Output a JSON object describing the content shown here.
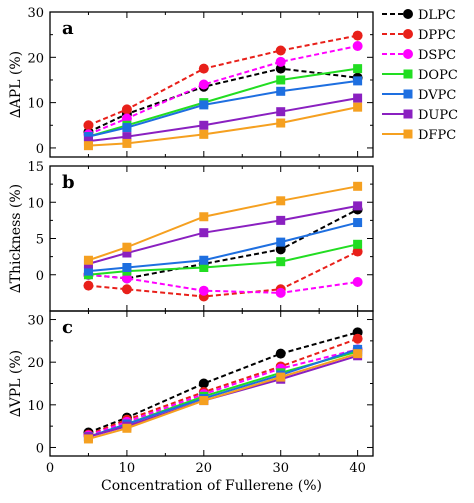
{
  "chart_data": [
    {
      "type": "line",
      "panel_label": "a",
      "ylabel": "∆APL (%)",
      "ylim": [
        -2,
        30
      ],
      "yticks": [
        0,
        10,
        20,
        30
      ],
      "x": [
        5,
        10,
        20,
        30,
        40
      ],
      "series": [
        {
          "name": "DLPC",
          "color": "#000000",
          "dashed": true,
          "values": [
            3.5,
            7.5,
            13.5,
            17.5,
            15.5
          ]
        },
        {
          "name": "DPPC",
          "color": "#e8201a",
          "dashed": true,
          "values": [
            5.0,
            8.5,
            17.5,
            21.5,
            24.8
          ]
        },
        {
          "name": "DSPC",
          "color": "#ff00ff",
          "dashed": true,
          "values": [
            3.0,
            6.5,
            14.0,
            19.0,
            22.5
          ]
        },
        {
          "name": "DOPC",
          "color": "#22dd22",
          "dashed": false,
          "values": [
            2.5,
            5.0,
            10.0,
            15.0,
            17.5
          ]
        },
        {
          "name": "DVPC",
          "color": "#1e6fe0",
          "dashed": false,
          "values": [
            2.5,
            4.5,
            9.5,
            12.5,
            14.8
          ]
        },
        {
          "name": "DUPC",
          "color": "#8a20c0",
          "dashed": false,
          "values": [
            1.5,
            2.5,
            5.0,
            8.0,
            11.0
          ]
        },
        {
          "name": "DFPC",
          "color": "#f5a020",
          "dashed": false,
          "values": [
            0.5,
            1.0,
            3.0,
            5.5,
            9.0
          ]
        }
      ]
    },
    {
      "type": "line",
      "panel_label": "b",
      "ylabel": "∆Thickness (%)",
      "ylim": [
        -5,
        15
      ],
      "yticks": [
        0,
        5,
        10,
        15
      ],
      "x": [
        5,
        10,
        20,
        30,
        40
      ],
      "series": [
        {
          "name": "DLPC",
          "color": "#000000",
          "dashed": true,
          "values": [
            0.0,
            -0.5,
            1.5,
            3.5,
            9.0
          ]
        },
        {
          "name": "DPPC",
          "color": "#e8201a",
          "dashed": true,
          "values": [
            -1.5,
            -2.0,
            -3.0,
            -2.0,
            3.2
          ]
        },
        {
          "name": "DSPC",
          "color": "#ff00ff",
          "dashed": true,
          "values": [
            0.0,
            -0.5,
            -2.2,
            -2.5,
            -1.0
          ]
        },
        {
          "name": "DOPC",
          "color": "#22dd22",
          "dashed": false,
          "values": [
            0.0,
            0.5,
            1.0,
            1.8,
            4.2
          ]
        },
        {
          "name": "DVPC",
          "color": "#1e6fe0",
          "dashed": false,
          "values": [
            0.5,
            1.0,
            2.0,
            4.5,
            7.2
          ]
        },
        {
          "name": "DUPC",
          "color": "#8a20c0",
          "dashed": false,
          "values": [
            1.5,
            3.0,
            5.8,
            7.5,
            9.5
          ]
        },
        {
          "name": "DFPC",
          "color": "#f5a020",
          "dashed": false,
          "values": [
            2.0,
            3.8,
            8.0,
            10.2,
            12.2
          ]
        }
      ]
    },
    {
      "type": "line",
      "panel_label": "c",
      "ylabel": "∆VPL (%)",
      "ylim": [
        -2,
        32
      ],
      "yticks": [
        0,
        10,
        20,
        30
      ],
      "xlabel": "Concentration of Fullerene (%)",
      "xlim": [
        0,
        42
      ],
      "xticks": [
        0,
        10,
        20,
        30,
        40
      ],
      "x": [
        5,
        10,
        20,
        30,
        40
      ],
      "series": [
        {
          "name": "DLPC",
          "color": "#000000",
          "dashed": true,
          "values": [
            3.5,
            7.0,
            15.0,
            22.0,
            27.0
          ]
        },
        {
          "name": "DPPC",
          "color": "#e8201a",
          "dashed": true,
          "values": [
            3.0,
            6.5,
            13.0,
            19.0,
            25.5
          ]
        },
        {
          "name": "DSPC",
          "color": "#ff00ff",
          "dashed": true,
          "values": [
            2.8,
            6.0,
            12.5,
            18.5,
            23.0
          ]
        },
        {
          "name": "DOPC",
          "color": "#22dd22",
          "dashed": false,
          "values": [
            2.5,
            5.5,
            12.0,
            17.5,
            22.5
          ]
        },
        {
          "name": "DVPC",
          "color": "#1e6fe0",
          "dashed": false,
          "values": [
            2.5,
            5.5,
            11.5,
            17.0,
            23.0
          ]
        },
        {
          "name": "DUPC",
          "color": "#8a20c0",
          "dashed": false,
          "values": [
            2.5,
            5.0,
            11.0,
            16.0,
            21.5
          ]
        },
        {
          "name": "DFPC",
          "color": "#f5a020",
          "dashed": false,
          "values": [
            2.0,
            4.5,
            11.0,
            16.5,
            22.0
          ]
        }
      ]
    }
  ],
  "legend": {
    "placement": "right",
    "entries": [
      "DLPC",
      "DPPC",
      "DSPC",
      "DOPC",
      "DVPC",
      "DUPC",
      "DFPC"
    ]
  }
}
